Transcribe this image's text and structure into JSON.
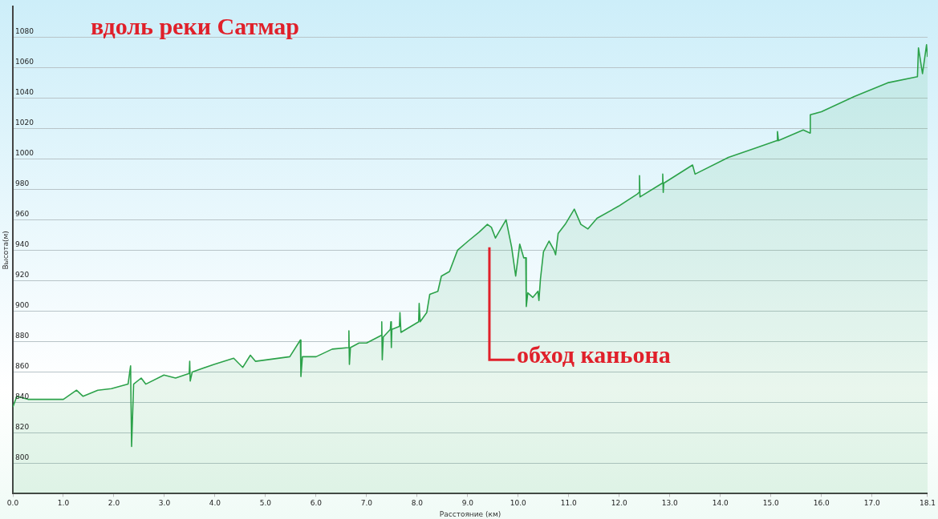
{
  "chart_data": {
    "type": "area",
    "title": "вдоль реки Сатмар",
    "xlabel": "Расстояние (км)",
    "ylabel": "Высота(м)",
    "annotations": [
      "обход каньона"
    ],
    "xlim": [
      0,
      18.1
    ],
    "ylim": [
      780,
      1100
    ],
    "xticks": [
      {
        "value": 0,
        "label": "0.0"
      },
      {
        "value": 1,
        "label": "1.0"
      },
      {
        "value": 2,
        "label": "2.0"
      },
      {
        "value": 3,
        "label": "3.0"
      },
      {
        "value": 4,
        "label": "4.0"
      },
      {
        "value": 5,
        "label": "5.0"
      },
      {
        "value": 6,
        "label": "6.0"
      },
      {
        "value": 7,
        "label": "7.0"
      },
      {
        "value": 8,
        "label": "8.0"
      },
      {
        "value": 9,
        "label": "9.0"
      },
      {
        "value": 10,
        "label": "10.0"
      },
      {
        "value": 11,
        "label": "11.0"
      },
      {
        "value": 12,
        "label": "12.0"
      },
      {
        "value": 13,
        "label": "13.0"
      },
      {
        "value": 14,
        "label": "14.0"
      },
      {
        "value": 15,
        "label": "15.0"
      },
      {
        "value": 16,
        "label": "16.0"
      },
      {
        "value": 17,
        "label": "17.0"
      },
      18.1
    ],
    "yticks": [
      800,
      820,
      840,
      860,
      880,
      900,
      920,
      940,
      960,
      980,
      1000,
      1020,
      1040,
      1060,
      1080
    ],
    "grid": "y",
    "legend": false,
    "marker": "none",
    "line_style": "solid",
    "series": [
      {
        "color": "#2ca24a",
        "x": [
          0,
          0.08,
          0.3,
          0.7,
          1.0,
          1.26,
          1.39,
          1.68,
          1.95,
          2.28,
          2.33,
          2.35,
          2.39,
          2.54,
          2.63,
          2.99,
          3.22,
          3.49,
          3.5,
          3.51,
          3.55,
          3.98,
          4.37,
          4.55,
          4.7,
          4.8,
          5.48,
          5.69,
          5.7,
          5.73,
          6.0,
          6.32,
          6.64,
          6.65,
          6.66,
          6.68,
          6.85,
          7.0,
          7.29,
          7.3,
          7.31,
          7.33,
          7.47,
          7.48,
          7.49,
          7.5,
          7.65,
          7.66,
          7.68,
          8.03,
          8.04,
          8.06,
          8.19,
          8.25,
          8.41,
          8.48,
          8.64,
          8.8,
          9.01,
          9.23,
          9.39,
          9.47,
          9.55,
          9.76,
          9.87,
          9.95,
          10.03,
          10.11,
          10.15,
          10.16,
          10.19,
          10.29,
          10.39,
          10.41,
          10.44,
          10.5,
          10.61,
          10.71,
          10.74,
          10.79,
          10.93,
          11.11,
          11.24,
          11.38,
          11.56,
          11.99,
          12.36,
          12.39,
          12.4,
          12.41,
          12.85,
          12.86,
          12.87,
          12.88,
          13.45,
          13.5,
          14.16,
          14.69,
          15.12,
          15.13,
          15.15,
          15.64,
          15.77,
          15.78,
          16.0,
          16.65,
          17.31,
          17.9,
          17.92,
          18.0,
          18.08,
          18.1
        ],
        "values": [
          837,
          844,
          842,
          842,
          842,
          848,
          844,
          848,
          849,
          852,
          864,
          811,
          852,
          856,
          852,
          858,
          856,
          859,
          867,
          854,
          860,
          865,
          869,
          863,
          871,
          867,
          870,
          881,
          857,
          870,
          870,
          875,
          876,
          887,
          865,
          876,
          879,
          879,
          884,
          893,
          868,
          883,
          888,
          893,
          876,
          888,
          890,
          899,
          886,
          893,
          905,
          893,
          899,
          911,
          913,
          923,
          926,
          940,
          946,
          952,
          957,
          955,
          948,
          960,
          942,
          923,
          944,
          935,
          935,
          903,
          912,
          909,
          913,
          907,
          921,
          939,
          946,
          940,
          937,
          951,
          957,
          967,
          957,
          954,
          961,
          969,
          977,
          978,
          989,
          975,
          984,
          990,
          978,
          984,
          996,
          990,
          1001,
          1007,
          1012,
          1018,
          1012,
          1019,
          1017,
          1029,
          1031,
          1041,
          1050,
          1054,
          1073,
          1056,
          1075,
          1067
        ]
      }
    ]
  }
}
